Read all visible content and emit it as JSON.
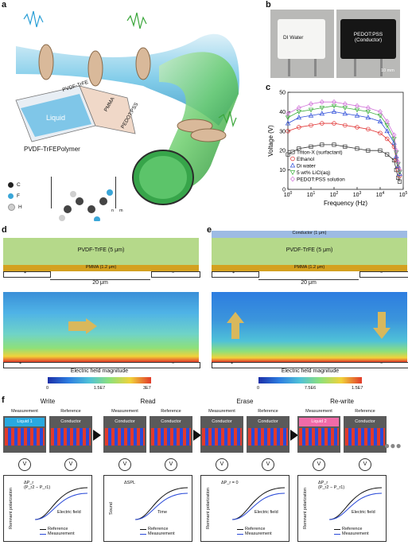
{
  "panels": {
    "a": {
      "letter": "a",
      "layers": [
        "PVDF-TrFE",
        "PMMA",
        "PEDOT:PSS",
        "Liquid"
      ],
      "polymer_title": "PVDF-TrFEPolymer",
      "atoms": [
        {
          "symbol": "C",
          "color": "#222222"
        },
        {
          "symbol": "F",
          "color": "#3aa6d8"
        },
        {
          "symbol": "H",
          "color": "#cccccc"
        }
      ],
      "subscripts": [
        "n",
        "m"
      ]
    },
    "b": {
      "letter": "b",
      "photos": [
        {
          "label": "DI Water"
        },
        {
          "label": "PEDOT:PSS\n(Conductor)",
          "scale": "10 mm"
        }
      ]
    },
    "c": {
      "letter": "c",
      "chart_data": {
        "type": "line",
        "xlabel": "Frequency (Hz)",
        "ylabel": "Voltage (V)",
        "xscale": "log",
        "xlim": [
          1,
          100000
        ],
        "ylim": [
          0,
          50
        ],
        "xticks": [
          "10^0",
          "10^1",
          "10^2",
          "10^3",
          "10^4",
          "10^5"
        ],
        "yticks": [
          0,
          10,
          20,
          30,
          40,
          50
        ],
        "legend_position": "bottom-left",
        "series": [
          {
            "name": "Triton-X (surfactant)",
            "color": "#333333",
            "marker": "square",
            "x": [
              1,
              3,
              10,
              30,
              100,
              300,
              1000,
              3000,
              10000,
              20000,
              40000,
              50000,
              60000,
              70000
            ],
            "y": [
              18,
              21,
              22,
              23,
              23,
              22,
              21,
              20,
              20,
              18,
              15,
              10,
              6,
              4
            ]
          },
          {
            "name": "Ethanol",
            "color": "#e03030",
            "marker": "circle",
            "x": [
              1,
              3,
              10,
              30,
              100,
              300,
              1000,
              3000,
              10000,
              20000,
              40000,
              50000,
              60000,
              70000
            ],
            "y": [
              30,
              32,
              33,
              34,
              34,
              33,
              32,
              31,
              29,
              26,
              22,
              15,
              10,
              7
            ]
          },
          {
            "name": "Di water",
            "color": "#2a4ad8",
            "marker": "triangle",
            "x": [
              1,
              3,
              10,
              30,
              100,
              300,
              1000,
              3000,
              10000,
              20000,
              40000,
              50000,
              60000,
              70000
            ],
            "y": [
              34,
              37,
              38,
              39,
              40,
              39,
              38,
              37,
              35,
              30,
              24,
              17,
              12,
              8
            ]
          },
          {
            "name": "5 wt% LiCl(aq)",
            "color": "#3cae3c",
            "marker": "triangle-down",
            "x": [
              1,
              3,
              10,
              30,
              100,
              300,
              1000,
              3000,
              10000,
              20000,
              40000,
              50000,
              60000,
              70000
            ],
            "y": [
              37,
              40,
              41,
              42,
              43,
              42,
              41,
              40,
              38,
              33,
              26,
              19,
              13,
              9
            ]
          },
          {
            "name": "PEDOT:PSS solution",
            "color": "#d070d8",
            "marker": "diamond",
            "x": [
              1,
              3,
              10,
              30,
              100,
              300,
              1000,
              3000,
              10000,
              20000,
              40000,
              50000,
              60000,
              70000
            ],
            "y": [
              39,
              42,
              44,
              45,
              45,
              44,
              43,
              42,
              40,
              35,
              28,
              20,
              14,
              10
            ]
          }
        ]
      }
    },
    "d": {
      "letter": "d",
      "film": "PVDF-TrFE (5 μm)",
      "sub": "PMMA (1.2 μm)",
      "plus": "+",
      "minus": "−",
      "gap": "20 μm",
      "colorbar_title": "Electric field magnitude",
      "ticks": [
        "0",
        "1.5E7",
        "3E7"
      ]
    },
    "e": {
      "letter": "e",
      "top": "Conductor (1 μm)",
      "film": "PVDF-TrFE (5 μm)",
      "sub": "PMMA (1.2 μm)",
      "plus": "+",
      "minus": "−",
      "gap": "20 μm",
      "colorbar_title": "Electric field magnitude",
      "ticks": [
        "0",
        "7.5E6",
        "1.5E7"
      ]
    },
    "f": {
      "letter": "f",
      "steps": [
        {
          "title": "Write",
          "left": "Measurement",
          "right": "Reference",
          "left_box": "Liquid 1",
          "right_box": "Conductor",
          "left_color": "#29a9e0",
          "ylabel": "Remnant polarization",
          "xlabel": "Electric field",
          "annotation": "ΔP_r\n(P_r2 − P_r1)",
          "legend": [
            "Reference",
            "Measurement"
          ]
        },
        {
          "title": "Read",
          "left": "Measurement",
          "right": "Reference",
          "left_box": "Conductor",
          "right_box": "Conductor",
          "left_color": "#5a5a5a",
          "ylabel": "Sound",
          "xlabel": "Time",
          "annotation": "ΔSPL",
          "legend": [
            "Reference",
            "Measurement"
          ]
        },
        {
          "title": "Erase",
          "left": "Measurement",
          "right": "Reference",
          "left_box": "Conductor",
          "right_box": "Conductor",
          "left_color": "#5a5a5a",
          "ylabel": "Remnant polarization",
          "xlabel": "Electric field",
          "annotation": "ΔP_r = 0",
          "legend": [
            "Reference",
            "Measurement"
          ]
        },
        {
          "title": "Re-write",
          "left": "Measurement",
          "right": "Reference",
          "left_box": "Liquid 2",
          "right_box": "Conductor",
          "left_color": "#f06ba8",
          "ylabel": "Remnant polarization",
          "xlabel": "Electric field",
          "annotation": "ΔP_r\n(P_r2 − P_r1)",
          "legend": [
            "Reference",
            "Measurement"
          ]
        }
      ]
    }
  }
}
